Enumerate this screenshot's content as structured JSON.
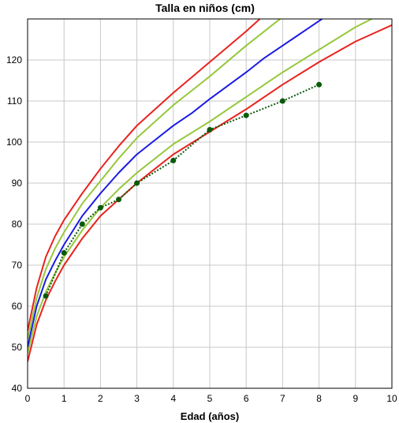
{
  "chart_data": {
    "type": "line",
    "title": "Talla en niños (cm)",
    "xlabel": "Edad (años)",
    "ylabel": "",
    "xlim": [
      0,
      10
    ],
    "ylim": [
      40,
      130
    ],
    "xticks": [
      0,
      1,
      2,
      3,
      4,
      5,
      6,
      7,
      8,
      9,
      10
    ],
    "yticks": [
      40,
      50,
      60,
      70,
      80,
      90,
      100,
      110,
      120
    ],
    "grid": true,
    "legend": "none",
    "colors": {
      "p3": "#e8231e",
      "p15": "#96c83c",
      "p50": "#1a1ae6",
      "p85": "#96c83c",
      "p97": "#e8231e",
      "child": "#0a5a0a",
      "grid": "#c8c8c8",
      "frame": "#000000"
    },
    "series": [
      {
        "key": "p3",
        "x": [
          0,
          0.25,
          0.5,
          0.75,
          1,
          1.5,
          2,
          2.5,
          3,
          3.5,
          4,
          5,
          6,
          7,
          8,
          9,
          10
        ],
        "y": [
          46.5,
          55.5,
          61.5,
          66,
          70,
          76.5,
          82,
          86,
          90,
          93.5,
          97,
          102.5,
          108,
          114,
          119.5,
          124.5,
          128.5
        ]
      },
      {
        "key": "p15",
        "x": [
          0,
          0.25,
          0.5,
          0.75,
          1,
          1.5,
          2,
          2.5,
          3,
          3.5,
          4,
          5,
          6,
          7,
          8,
          9,
          10
        ],
        "y": [
          48.5,
          57.5,
          63.5,
          68,
          72,
          78.5,
          84,
          88.5,
          92.5,
          96,
          99.5,
          105,
          111,
          117,
          122.5,
          128,
          132.5
        ]
      },
      {
        "key": "p50",
        "x": [
          0,
          0.25,
          0.5,
          0.75,
          1,
          1.5,
          2,
          2.5,
          3,
          3.5,
          4,
          4.5,
          5,
          6,
          6.5,
          7,
          8,
          8.5
        ],
        "y": [
          50,
          60,
          66.5,
          71,
          75,
          82,
          87.5,
          92.5,
          97,
          100.5,
          104,
          107,
          110.5,
          117,
          120.5,
          123.5,
          129.5,
          132.5
        ]
      },
      {
        "key": "p85",
        "x": [
          0,
          0.25,
          0.5,
          0.75,
          1,
          1.5,
          2,
          2.5,
          3,
          3.5,
          4,
          5,
          6,
          7,
          7.5
        ],
        "y": [
          52,
          62,
          69,
          74,
          78,
          85,
          90.5,
          96,
          101,
          105,
          109,
          116,
          123.5,
          130.5,
          133.5
        ]
      },
      {
        "key": "p97",
        "x": [
          0,
          0.25,
          0.5,
          0.75,
          1,
          1.5,
          2,
          2.5,
          3,
          3.5,
          4,
          5,
          6,
          6.5
        ],
        "y": [
          54,
          64.5,
          72,
          77,
          81,
          87.5,
          93.5,
          99,
          104,
          108,
          112,
          119.5,
          127,
          131
        ]
      }
    ],
    "points": {
      "key": "child",
      "x": [
        0.5,
        1,
        1.5,
        2,
        2.5,
        3,
        4,
        5,
        6,
        7,
        8
      ],
      "y": [
        62.5,
        73,
        80,
        84,
        86,
        90,
        95.5,
        103,
        106.5,
        110,
        114
      ]
    }
  }
}
